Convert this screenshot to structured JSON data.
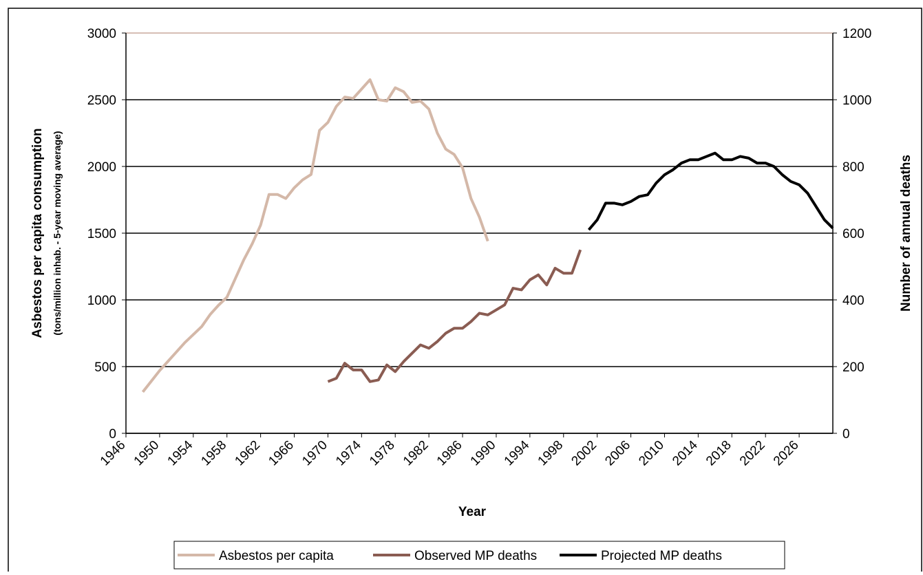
{
  "chart_data": {
    "type": "line",
    "xlabel": "Year",
    "ylabel": "Asbestos per capita consumption",
    "ylabel_sub": "(tons/million inhab. - 5-year moving average)",
    "y2label": "Number of annual deaths",
    "xlim": [
      1946,
      2030
    ],
    "xticks": [
      1946,
      1950,
      1954,
      1958,
      1962,
      1966,
      1970,
      1974,
      1978,
      1982,
      1986,
      1990,
      1994,
      1998,
      2002,
      2006,
      2010,
      2014,
      2018,
      2022,
      2026
    ],
    "ylim": [
      0,
      3000
    ],
    "yticks": [
      0,
      500,
      1000,
      1500,
      2000,
      2500,
      3000
    ],
    "y2lim": [
      0,
      1200
    ],
    "y2ticks": [
      0,
      200,
      400,
      600,
      800,
      1000,
      1200
    ],
    "grid": true,
    "legend": "bottom",
    "series": [
      {
        "name": "Asbestos per capita",
        "color": "#d4b8a8",
        "x": [
          1948,
          1949,
          1950,
          1951,
          1952,
          1953,
          1954,
          1955,
          1956,
          1957,
          1958,
          1959,
          1960,
          1961,
          1962,
          1963,
          1964,
          1965,
          1966,
          1967,
          1968,
          1969,
          1970,
          1971,
          1972,
          1973,
          1974,
          1975,
          1976,
          1977,
          1978,
          1979,
          1980,
          1981,
          1982,
          1983,
          1984,
          1985,
          1986,
          1987,
          1988,
          1989
        ],
        "values": [
          310,
          390,
          470,
          540,
          610,
          680,
          740,
          800,
          890,
          960,
          1020,
          1160,
          1300,
          1420,
          1560,
          1790,
          1790,
          1760,
          1840,
          1900,
          1940,
          2270,
          2330,
          2450,
          2520,
          2510,
          2580,
          2650,
          2500,
          2490,
          2590,
          2560,
          2480,
          2490,
          2430,
          2250,
          2130,
          2090,
          1990,
          1760,
          1620,
          1440
        ]
      },
      {
        "name": "Observed MP deaths",
        "color": "#8a5c52",
        "axis": "y2",
        "x": [
          1970,
          1971,
          1972,
          1973,
          1974,
          1975,
          1976,
          1977,
          1978,
          1979,
          1980,
          1981,
          1982,
          1983,
          1984,
          1985,
          1986,
          1987,
          1988,
          1989,
          1990,
          1991,
          1992,
          1993,
          1994,
          1995,
          1996,
          1997,
          1998,
          1999,
          2000
        ],
        "values": [
          155,
          165,
          210,
          190,
          190,
          155,
          160,
          205,
          185,
          215,
          240,
          265,
          255,
          275,
          300,
          315,
          315,
          335,
          360,
          355,
          370,
          385,
          435,
          430,
          460,
          475,
          445,
          495,
          480,
          480,
          550
        ]
      },
      {
        "name": "Projected MP deaths",
        "color": "#000000",
        "axis": "y2",
        "x": [
          2001,
          2002,
          2003,
          2004,
          2005,
          2006,
          2007,
          2008,
          2009,
          2010,
          2011,
          2012,
          2013,
          2014,
          2015,
          2016,
          2017,
          2018,
          2019,
          2020,
          2021,
          2022,
          2023,
          2024,
          2025,
          2026,
          2027,
          2028,
          2029,
          2030
        ],
        "values": [
          610,
          640,
          690,
          690,
          685,
          695,
          710,
          715,
          750,
          775,
          790,
          810,
          820,
          820,
          830,
          840,
          820,
          820,
          830,
          825,
          810,
          810,
          800,
          775,
          755,
          745,
          720,
          680,
          640,
          615
        ]
      }
    ]
  }
}
